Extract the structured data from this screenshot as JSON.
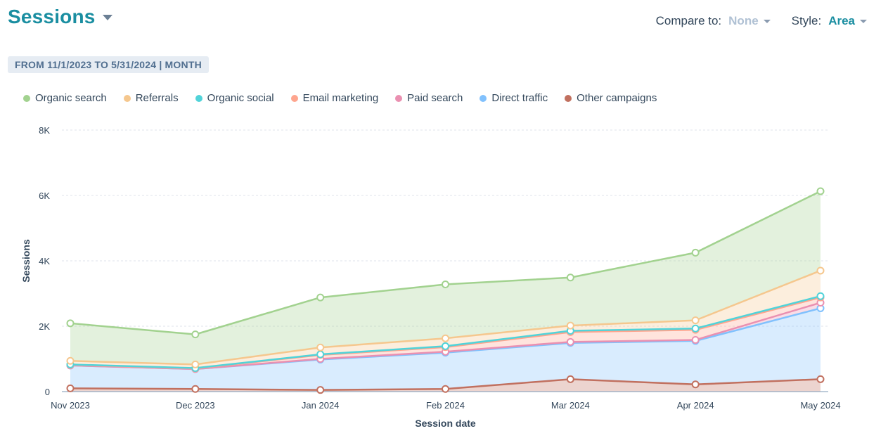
{
  "header": {
    "title": "Sessions",
    "compare_label": "Compare to:",
    "compare_value": "None",
    "style_label": "Style:",
    "style_value": "Area"
  },
  "date_range": "FROM 11/1/2023 TO 5/31/2024 | MONTH",
  "colors": {
    "organic_search": "#a2d28f",
    "referrals": "#f5c78e",
    "organic_social": "#51d3d9",
    "email_marketing": "#fea58e",
    "paid_search": "#ea90b1",
    "direct_traffic": "#81c1fd",
    "other_campaigns": "#c1705f"
  },
  "chart_data": {
    "type": "area",
    "stacked": true,
    "xlabel": "Session date",
    "ylabel": "Sessions",
    "ylim": [
      0,
      8000
    ],
    "yticks": [
      0,
      2000,
      4000,
      6000,
      8000
    ],
    "ytick_labels": [
      "0",
      "2K",
      "4K",
      "6K",
      "8K"
    ],
    "categories": [
      "Nov 2023",
      "Dec 2023",
      "Jan 2024",
      "Feb 2024",
      "Mar 2024",
      "Apr 2024",
      "May 2024"
    ],
    "series": [
      {
        "name": "Other campaigns",
        "key": "other_campaigns",
        "values": [
          100,
          80,
          50,
          80,
          380,
          220,
          380
        ]
      },
      {
        "name": "Direct traffic",
        "key": "direct_traffic",
        "values": [
          700,
          610,
          930,
          1110,
          1110,
          1330,
          2170
        ]
      },
      {
        "name": "Paid search",
        "key": "paid_search",
        "values": [
          0,
          0,
          20,
          30,
          30,
          30,
          170
        ]
      },
      {
        "name": "Email marketing",
        "key": "email_marketing",
        "values": [
          20,
          20,
          120,
          140,
          300,
          310,
          160
        ]
      },
      {
        "name": "Organic social",
        "key": "organic_social",
        "values": [
          10,
          10,
          20,
          30,
          40,
          40,
          40
        ]
      },
      {
        "name": "Referrals",
        "key": "referrals",
        "values": [
          110,
          110,
          210,
          240,
          160,
          250,
          780
        ]
      },
      {
        "name": "Organic search",
        "key": "organic_search",
        "values": [
          1150,
          920,
          1530,
          1650,
          1470,
          2070,
          2430
        ]
      }
    ],
    "legend": [
      "Organic search",
      "Referrals",
      "Organic social",
      "Email marketing",
      "Paid search",
      "Direct traffic",
      "Other campaigns"
    ],
    "legend_keys": [
      "organic_search",
      "referrals",
      "organic_social",
      "email_marketing",
      "paid_search",
      "direct_traffic",
      "other_campaigns"
    ],
    "legend_position": "top-left",
    "grid": true
  }
}
